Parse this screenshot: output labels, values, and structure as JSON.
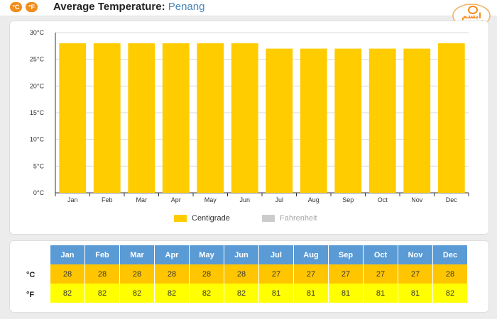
{
  "header": {
    "btn_c": "°C",
    "btn_f": "°F",
    "title_prefix": "Average Temperature:",
    "city": "Penang"
  },
  "logo": {
    "text": "ابسم",
    "color": "#f28c1c"
  },
  "colors": {
    "centigrade": "#ffcc00",
    "fahrenheit": "#cccccc",
    "table_header": "#5b9bd5",
    "row_c": "#ffc600",
    "row_f": "#ffff00"
  },
  "chart_data": {
    "type": "bar",
    "categories": [
      "Jan",
      "Feb",
      "Mar",
      "Apr",
      "May",
      "Jun",
      "Jul",
      "Aug",
      "Sep",
      "Oct",
      "Nov",
      "Dec"
    ],
    "series": [
      {
        "name": "Centigrade",
        "values": [
          28,
          28,
          28,
          28,
          28,
          28,
          27,
          27,
          27,
          27,
          27,
          28
        ],
        "visible": true
      },
      {
        "name": "Fahrenheit",
        "values": [
          82,
          82,
          82,
          82,
          82,
          82,
          81,
          81,
          81,
          81,
          81,
          82
        ],
        "visible": false
      }
    ],
    "ylim": [
      0,
      30
    ],
    "yticks": [
      "0°C",
      "5°C",
      "10°C",
      "15°C",
      "20°C",
      "25°C",
      "30°C"
    ],
    "grid": true,
    "legend": "bottom"
  },
  "legend": {
    "centigrade": "Centigrade",
    "fahrenheit": "Fahrenheit"
  },
  "table": {
    "months": [
      "Jan",
      "Feb",
      "Mar",
      "Apr",
      "May",
      "Jun",
      "Jul",
      "Aug",
      "Sep",
      "Oct",
      "Nov",
      "Dec"
    ],
    "row_c_label": "°C",
    "row_f_label": "°F",
    "row_c": [
      "28",
      "28",
      "28",
      "28",
      "28",
      "28",
      "27",
      "27",
      "27",
      "27",
      "27",
      "28"
    ],
    "row_f": [
      "82",
      "82",
      "82",
      "82",
      "82",
      "82",
      "81",
      "81",
      "81",
      "81",
      "81",
      "82"
    ]
  }
}
